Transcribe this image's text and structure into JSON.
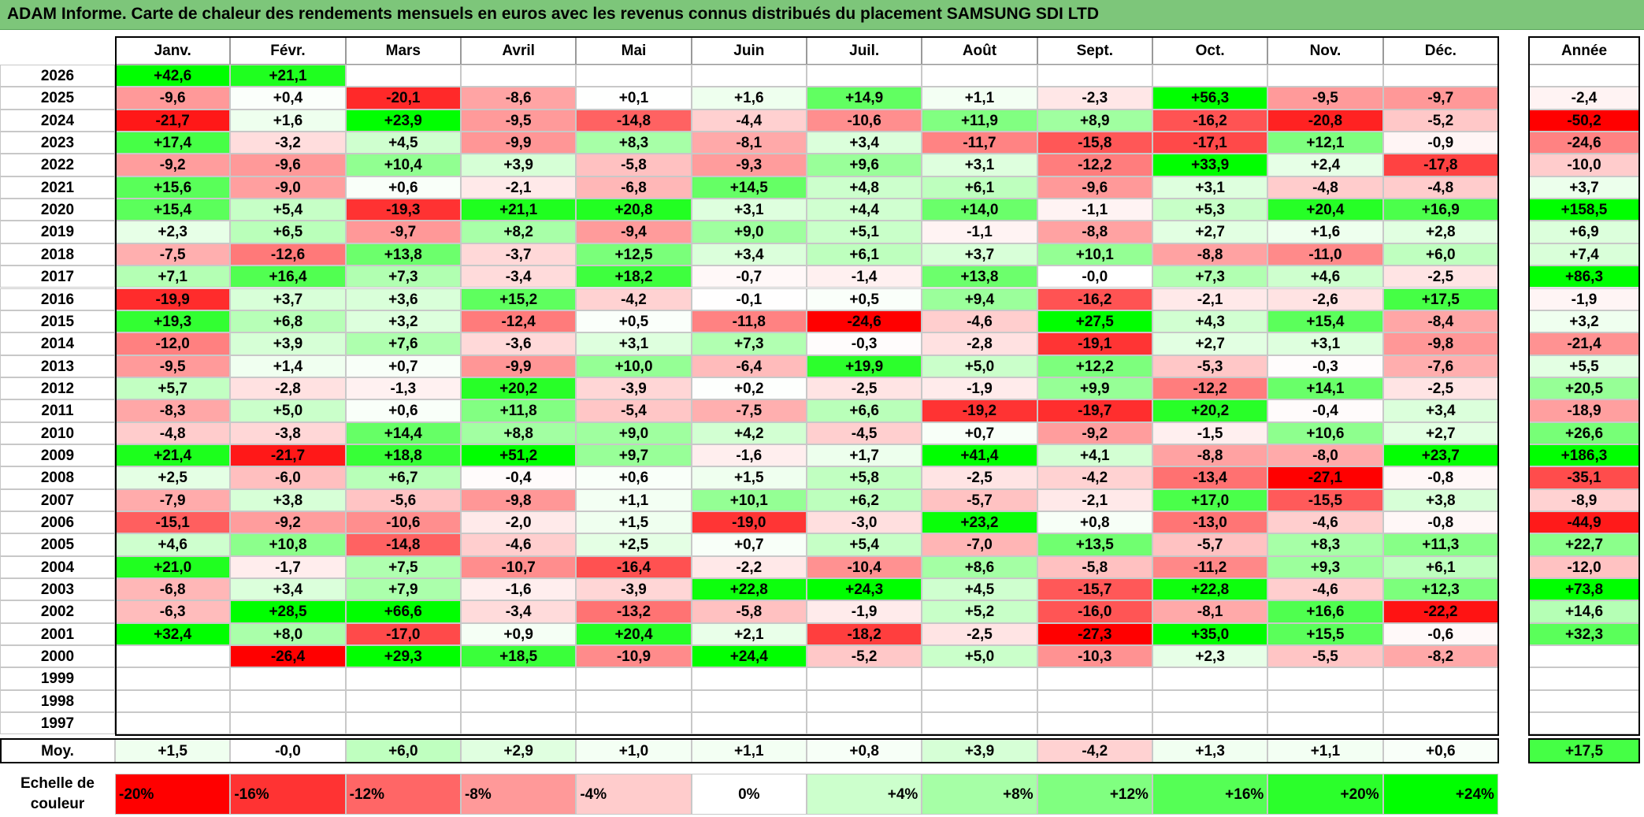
{
  "title": "ADAM Informe. Carte de chaleur des rendements mensuels en euros avec les revenus connus distribués du placement SAMSUNG SDI LTD",
  "months": [
    "Janv.",
    "Févr.",
    "Mars",
    "Avril",
    "Mai",
    "Juin",
    "Juil.",
    "Août",
    "Sept.",
    "Oct.",
    "Nov.",
    "Déc."
  ],
  "year_header": "Année",
  "avg_label": "Moy.",
  "scale_label_line1": "Echelle de",
  "scale_label_line2": "couleur",
  "chart_data": {
    "type": "heatmap",
    "title": "ADAM Informe. Carte de chaleur des rendements mensuels en euros avec les revenus connus distribués du placement SAMSUNG SDI LTD",
    "x_categories": [
      "Janv.",
      "Févr.",
      "Mars",
      "Avril",
      "Mai",
      "Juin",
      "Juil.",
      "Août",
      "Sept.",
      "Oct.",
      "Nov.",
      "Déc."
    ],
    "rows": [
      {
        "year": "2026",
        "values": [
          "+42,6",
          "+21,1",
          "",
          "",
          "",
          "",
          "",
          "",
          "",
          "",
          "",
          ""
        ],
        "annual": ""
      },
      {
        "year": "2025",
        "values": [
          "-9,6",
          "+0,4",
          "-20,1",
          "-8,6",
          "+0,1",
          "+1,6",
          "+14,9",
          "+1,1",
          "-2,3",
          "+56,3",
          "-9,5",
          "-9,7"
        ],
        "annual": "-2,4"
      },
      {
        "year": "2024",
        "values": [
          "-21,7",
          "+1,6",
          "+23,9",
          "-9,5",
          "-14,8",
          "-4,4",
          "-10,6",
          "+11,9",
          "+8,9",
          "-16,2",
          "-20,8",
          "-5,2"
        ],
        "annual": "-50,2"
      },
      {
        "year": "2023",
        "values": [
          "+17,4",
          "-3,2",
          "+4,5",
          "-9,9",
          "+8,3",
          "-8,1",
          "+3,4",
          "-11,7",
          "-15,8",
          "-17,1",
          "+12,1",
          "-0,9"
        ],
        "annual": "-24,6"
      },
      {
        "year": "2022",
        "values": [
          "-9,2",
          "-9,6",
          "+10,4",
          "+3,9",
          "-5,8",
          "-9,3",
          "+9,6",
          "+3,1",
          "-12,2",
          "+33,9",
          "+2,4",
          "-17,8"
        ],
        "annual": "-10,0"
      },
      {
        "year": "2021",
        "values": [
          "+15,6",
          "-9,0",
          "+0,6",
          "-2,1",
          "-6,8",
          "+14,5",
          "+4,8",
          "+6,1",
          "-9,6",
          "+3,1",
          "-4,8",
          "-4,8"
        ],
        "annual": "+3,7"
      },
      {
        "year": "2020",
        "values": [
          "+15,4",
          "+5,4",
          "-19,3",
          "+21,1",
          "+20,8",
          "+3,1",
          "+4,4",
          "+14,0",
          "-1,1",
          "+5,3",
          "+20,4",
          "+16,9"
        ],
        "annual": "+158,5"
      },
      {
        "year": "2019",
        "values": [
          "+2,3",
          "+6,5",
          "-9,7",
          "+8,2",
          "-9,4",
          "+9,0",
          "+5,1",
          "-1,1",
          "-8,8",
          "+2,7",
          "+1,6",
          "+2,8"
        ],
        "annual": "+6,9"
      },
      {
        "year": "2018",
        "values": [
          "-7,5",
          "-12,6",
          "+13,8",
          "-3,7",
          "+12,5",
          "+3,4",
          "+6,1",
          "+3,7",
          "+10,1",
          "-8,8",
          "-11,0",
          "+6,0"
        ],
        "annual": "+7,4"
      },
      {
        "year": "2017",
        "values": [
          "+7,1",
          "+16,4",
          "+7,3",
          "-3,4",
          "+18,2",
          "-0,7",
          "-1,4",
          "+13,8",
          "-0,0",
          "+7,3",
          "+4,6",
          "-2,5"
        ],
        "annual": "+86,3"
      },
      {
        "year": "2016",
        "values": [
          "-19,9",
          "+3,7",
          "+3,6",
          "+15,2",
          "-4,2",
          "-0,1",
          "+0,5",
          "+9,4",
          "-16,2",
          "-2,1",
          "-2,6",
          "+17,5"
        ],
        "annual": "-1,9"
      },
      {
        "year": "2015",
        "values": [
          "+19,3",
          "+6,8",
          "+3,2",
          "-12,4",
          "+0,5",
          "-11,8",
          "-24,6",
          "-4,6",
          "+27,5",
          "+4,3",
          "+15,4",
          "-8,4"
        ],
        "annual": "+3,2"
      },
      {
        "year": "2014",
        "values": [
          "-12,0",
          "+3,9",
          "+7,6",
          "-3,6",
          "+3,1",
          "+7,3",
          "-0,3",
          "-2,8",
          "-19,1",
          "+2,7",
          "+3,1",
          "-9,8"
        ],
        "annual": "-21,4"
      },
      {
        "year": "2013",
        "values": [
          "-9,5",
          "+1,4",
          "+0,7",
          "-9,9",
          "+10,0",
          "-6,4",
          "+19,9",
          "+5,0",
          "+12,2",
          "-5,3",
          "-0,3",
          "-7,6"
        ],
        "annual": "+5,5"
      },
      {
        "year": "2012",
        "values": [
          "+5,7",
          "-2,8",
          "-1,3",
          "+20,2",
          "-3,9",
          "+0,2",
          "-2,5",
          "-1,9",
          "+9,9",
          "-12,2",
          "+14,1",
          "-2,5"
        ],
        "annual": "+20,5"
      },
      {
        "year": "2011",
        "values": [
          "-8,3",
          "+5,0",
          "+0,6",
          "+11,8",
          "-5,4",
          "-7,5",
          "+6,6",
          "-19,2",
          "-19,7",
          "+20,2",
          "-0,4",
          "+3,4"
        ],
        "annual": "-18,9"
      },
      {
        "year": "2010",
        "values": [
          "-4,8",
          "-3,8",
          "+14,4",
          "+8,8",
          "+9,0",
          "+4,2",
          "-4,5",
          "+0,7",
          "-9,2",
          "-1,5",
          "+10,6",
          "+2,7"
        ],
        "annual": "+26,6"
      },
      {
        "year": "2009",
        "values": [
          "+21,4",
          "-21,7",
          "+18,8",
          "+51,2",
          "+9,7",
          "-1,6",
          "+1,7",
          "+41,4",
          "+4,1",
          "-8,8",
          "-8,0",
          "+23,7"
        ],
        "annual": "+186,3"
      },
      {
        "year": "2008",
        "values": [
          "+2,5",
          "-6,0",
          "+6,7",
          "-0,4",
          "+0,6",
          "+1,5",
          "+5,8",
          "-2,5",
          "-4,2",
          "-13,4",
          "-27,1",
          "-0,8"
        ],
        "annual": "-35,1"
      },
      {
        "year": "2007",
        "values": [
          "-7,9",
          "+3,8",
          "-5,6",
          "-9,8",
          "+1,1",
          "+10,1",
          "+6,2",
          "-5,7",
          "-2,1",
          "+17,0",
          "-15,5",
          "+3,8"
        ],
        "annual": "-8,9"
      },
      {
        "year": "2006",
        "values": [
          "-15,1",
          "-9,2",
          "-10,6",
          "-2,0",
          "+1,5",
          "-19,0",
          "-3,0",
          "+23,2",
          "+0,8",
          "-13,0",
          "-4,6",
          "-0,8"
        ],
        "annual": "-44,9"
      },
      {
        "year": "2005",
        "values": [
          "+4,6",
          "+10,8",
          "-14,8",
          "-4,6",
          "+2,5",
          "+0,7",
          "+5,4",
          "-7,0",
          "+13,5",
          "-5,7",
          "+8,3",
          "+11,3"
        ],
        "annual": "+22,7"
      },
      {
        "year": "2004",
        "values": [
          "+21,0",
          "-1,7",
          "+7,5",
          "-10,7",
          "-16,4",
          "-2,2",
          "-10,4",
          "+8,6",
          "-5,8",
          "-11,2",
          "+9,3",
          "+6,1"
        ],
        "annual": "-12,0"
      },
      {
        "year": "2003",
        "values": [
          "-6,8",
          "+3,4",
          "+7,9",
          "-1,6",
          "-3,9",
          "+22,8",
          "+24,3",
          "+4,5",
          "-15,7",
          "+22,8",
          "-4,6",
          "+12,3"
        ],
        "annual": "+73,8"
      },
      {
        "year": "2002",
        "values": [
          "-6,3",
          "+28,5",
          "+66,6",
          "-3,4",
          "-13,2",
          "-5,8",
          "-1,9",
          "+5,2",
          "-16,0",
          "-8,1",
          "+16,6",
          "-22,2"
        ],
        "annual": "+14,6"
      },
      {
        "year": "2001",
        "values": [
          "+32,4",
          "+8,0",
          "-17,0",
          "+0,9",
          "+20,4",
          "+2,1",
          "-18,2",
          "-2,5",
          "-27,3",
          "+35,0",
          "+15,5",
          "-0,6"
        ],
        "annual": "+32,3"
      },
      {
        "year": "2000",
        "values": [
          "",
          "-26,4",
          "+29,3",
          "+18,5",
          "-10,9",
          "+24,4",
          "-5,2",
          "+5,0",
          "-10,3",
          "+2,3",
          "-5,5",
          "-8,2"
        ],
        "annual": ""
      },
      {
        "year": "1999",
        "values": [
          "",
          "",
          "",
          "",
          "",
          "",
          "",
          "",
          "",
          "",
          "",
          ""
        ],
        "annual": ""
      },
      {
        "year": "1998",
        "values": [
          "",
          "",
          "",
          "",
          "",
          "",
          "",
          "",
          "",
          "",
          "",
          ""
        ],
        "annual": ""
      },
      {
        "year": "1997",
        "values": [
          "",
          "",
          "",
          "",
          "",
          "",
          "",
          "",
          "",
          "",
          "",
          ""
        ],
        "annual": ""
      }
    ],
    "averages": {
      "values": [
        "+1,5",
        "-0,0",
        "+6,0",
        "+2,9",
        "+1,0",
        "+1,1",
        "+0,8",
        "+3,9",
        "-4,2",
        "+1,3",
        "+1,1",
        "+0,6"
      ],
      "annual": "+17,5"
    },
    "scale": [
      {
        "label": "-20%",
        "value": -20,
        "color": "#FF0000"
      },
      {
        "label": "-16%",
        "value": -16,
        "color": "#FF3333"
      },
      {
        "label": "-12%",
        "value": -12,
        "color": "#FF6666"
      },
      {
        "label": "-8%",
        "value": -8,
        "color": "#FF9999"
      },
      {
        "label": "-4%",
        "value": -4,
        "color": "#FFCCCC"
      },
      {
        "label": "0%",
        "value": 0,
        "color": "#FFFFFF"
      },
      {
        "label": "+4%",
        "value": 4,
        "color": "#CCFFCC"
      },
      {
        "label": "+8%",
        "value": 8,
        "color": "#A6FFA6"
      },
      {
        "label": "+12%",
        "value": 12,
        "color": "#80FF80"
      },
      {
        "label": "+16%",
        "value": 16,
        "color": "#55FF55"
      },
      {
        "label": "+20%",
        "value": 20,
        "color": "#2BFF2B"
      },
      {
        "label": "+24%",
        "value": 24,
        "color": "#00FF00"
      }
    ]
  }
}
